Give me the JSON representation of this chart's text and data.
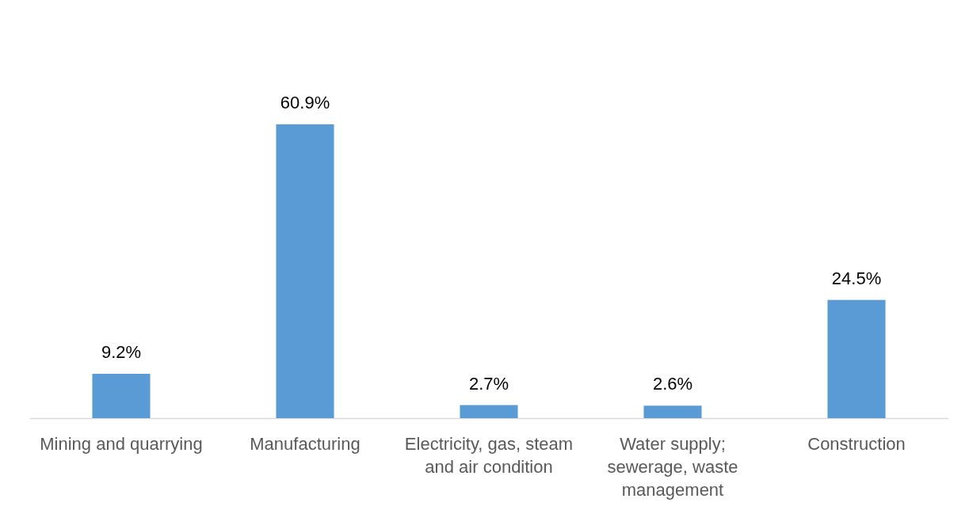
{
  "chart_data": {
    "type": "bar",
    "categories": [
      "Mining and quarrying",
      "Manufacturing",
      "Electricity, gas, steam and air condition",
      "Water supply; sewerage, waste management",
      "Construction"
    ],
    "values": [
      9.2,
      60.9,
      2.7,
      2.6,
      24.5
    ],
    "color": "#5b9bd5",
    "value_labels": [
      "9.2%",
      "60.9%",
      "2.7%",
      "2.6%",
      "24.5%"
    ]
  }
}
